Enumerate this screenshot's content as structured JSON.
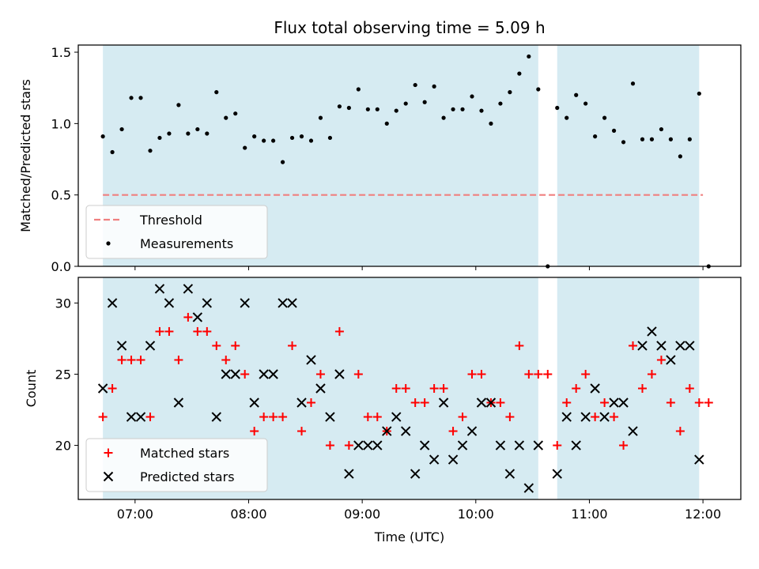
{
  "chart_data": [
    {
      "type": "scatter",
      "title": "Flux total observing time = 5.09 h",
      "xlabel": "",
      "ylabel": "Matched/Predicted stars",
      "x_range": [
        "06:30",
        "12:20"
      ],
      "ylim": [
        0,
        1.55
      ],
      "yticks": [
        "0.0",
        "0.5",
        "1.0",
        "1.5"
      ],
      "xticks": [
        "07:00",
        "08:00",
        "09:00",
        "10:00",
        "11:00",
        "12:00"
      ],
      "shaded_intervals": [
        [
          "06:43",
          "10:33"
        ],
        [
          "10:43",
          "11:58"
        ]
      ],
      "shade_color": "#add8e6",
      "legend": {
        "position": "lower-left",
        "entries": [
          "Threshold",
          "Measurements"
        ]
      },
      "series": [
        {
          "name": "Threshold",
          "style": "dashed-line",
          "color": "#f08080",
          "x": [
            "06:43",
            "12:00"
          ],
          "y": [
            0.5,
            0.5
          ]
        },
        {
          "name": "Measurements",
          "style": "dot",
          "color": "#000000",
          "points": [
            [
              "06:43",
              0.91
            ],
            [
              "06:48",
              0.8
            ],
            [
              "06:53",
              0.96
            ],
            [
              "06:58",
              1.18
            ],
            [
              "07:03",
              1.18
            ],
            [
              "07:08",
              0.81
            ],
            [
              "07:13",
              0.9
            ],
            [
              "07:18",
              0.93
            ],
            [
              "07:23",
              1.13
            ],
            [
              "07:28",
              0.93
            ],
            [
              "07:33",
              0.96
            ],
            [
              "07:38",
              0.93
            ],
            [
              "07:43",
              1.22
            ],
            [
              "07:48",
              1.04
            ],
            [
              "07:53",
              1.07
            ],
            [
              "07:58",
              0.83
            ],
            [
              "08:03",
              0.91
            ],
            [
              "08:08",
              0.88
            ],
            [
              "08:13",
              0.88
            ],
            [
              "08:18",
              0.73
            ],
            [
              "08:23",
              0.9
            ],
            [
              "08:28",
              0.91
            ],
            [
              "08:33",
              0.88
            ],
            [
              "08:38",
              1.04
            ],
            [
              "08:43",
              0.9
            ],
            [
              "08:48",
              1.12
            ],
            [
              "08:53",
              1.11
            ],
            [
              "08:58",
              1.24
            ],
            [
              "09:03",
              1.1
            ],
            [
              "09:08",
              1.1
            ],
            [
              "09:13",
              1.0
            ],
            [
              "09:18",
              1.09
            ],
            [
              "09:23",
              1.14
            ],
            [
              "09:28",
              1.27
            ],
            [
              "09:33",
              1.15
            ],
            [
              "09:38",
              1.26
            ],
            [
              "09:43",
              1.04
            ],
            [
              "09:48",
              1.1
            ],
            [
              "09:53",
              1.1
            ],
            [
              "09:58",
              1.19
            ],
            [
              "10:03",
              1.09
            ],
            [
              "10:08",
              1.0
            ],
            [
              "10:13",
              1.14
            ],
            [
              "10:18",
              1.22
            ],
            [
              "10:23",
              1.35
            ],
            [
              "10:28",
              1.47
            ],
            [
              "10:33",
              1.24
            ],
            [
              "10:38",
              0.0
            ],
            [
              "10:43",
              1.11
            ],
            [
              "10:48",
              1.04
            ],
            [
              "10:53",
              1.2
            ],
            [
              "10:58",
              1.14
            ],
            [
              "11:03",
              0.91
            ],
            [
              "11:08",
              1.04
            ],
            [
              "11:13",
              0.95
            ],
            [
              "11:18",
              0.87
            ],
            [
              "11:23",
              1.28
            ],
            [
              "11:28",
              0.89
            ],
            [
              "11:33",
              0.89
            ],
            [
              "11:38",
              0.96
            ],
            [
              "11:43",
              0.89
            ],
            [
              "11:48",
              0.77
            ],
            [
              "11:53",
              0.89
            ],
            [
              "11:58",
              1.21
            ],
            [
              "12:03",
              0.0
            ]
          ]
        }
      ]
    },
    {
      "type": "scatter",
      "title": "",
      "xlabel": "Time (UTC)",
      "ylabel": "Count",
      "x_range": [
        "06:30",
        "12:20"
      ],
      "ylim": [
        16.2,
        31.8
      ],
      "yticks": [
        "20",
        "25",
        "30"
      ],
      "xticks": [
        "07:00",
        "08:00",
        "09:00",
        "10:00",
        "11:00",
        "12:00"
      ],
      "shaded_intervals": [
        [
          "06:43",
          "10:33"
        ],
        [
          "10:43",
          "11:58"
        ]
      ],
      "shade_color": "#add8e6",
      "legend": {
        "position": "lower-left",
        "entries": [
          "Matched stars",
          "Predicted stars"
        ]
      },
      "series": [
        {
          "name": "Matched stars",
          "style": "plus",
          "color": "#ff0000",
          "points": [
            [
              "06:43",
              22
            ],
            [
              "06:48",
              24
            ],
            [
              "06:53",
              26
            ],
            [
              "06:58",
              26
            ],
            [
              "07:03",
              26
            ],
            [
              "07:08",
              22
            ],
            [
              "07:13",
              28
            ],
            [
              "07:18",
              28
            ],
            [
              "07:23",
              26
            ],
            [
              "07:28",
              29
            ],
            [
              "07:33",
              28
            ],
            [
              "07:38",
              28
            ],
            [
              "07:43",
              27
            ],
            [
              "07:48",
              26
            ],
            [
              "07:53",
              27
            ],
            [
              "07:58",
              25
            ],
            [
              "08:03",
              21
            ],
            [
              "08:08",
              22
            ],
            [
              "08:13",
              22
            ],
            [
              "08:18",
              22
            ],
            [
              "08:23",
              27
            ],
            [
              "08:28",
              21
            ],
            [
              "08:33",
              23
            ],
            [
              "08:38",
              25
            ],
            [
              "08:43",
              20
            ],
            [
              "08:48",
              28
            ],
            [
              "08:53",
              20
            ],
            [
              "08:58",
              25
            ],
            [
              "09:03",
              22
            ],
            [
              "09:08",
              22
            ],
            [
              "09:13",
              21
            ],
            [
              "09:18",
              24
            ],
            [
              "09:23",
              24
            ],
            [
              "09:28",
              23
            ],
            [
              "09:33",
              23
            ],
            [
              "09:38",
              24
            ],
            [
              "09:43",
              24
            ],
            [
              "09:48",
              21
            ],
            [
              "09:53",
              22
            ],
            [
              "09:58",
              25
            ],
            [
              "10:03",
              25
            ],
            [
              "10:08",
              23
            ],
            [
              "10:13",
              23
            ],
            [
              "10:18",
              22
            ],
            [
              "10:23",
              27
            ],
            [
              "10:28",
              25
            ],
            [
              "10:33",
              25
            ],
            [
              "10:38",
              25
            ],
            [
              "10:43",
              20
            ],
            [
              "10:48",
              23
            ],
            [
              "10:53",
              24
            ],
            [
              "10:58",
              25
            ],
            [
              "11:03",
              22
            ],
            [
              "11:08",
              23
            ],
            [
              "11:13",
              22
            ],
            [
              "11:18",
              20
            ],
            [
              "11:23",
              27
            ],
            [
              "11:28",
              24
            ],
            [
              "11:33",
              25
            ],
            [
              "11:38",
              26
            ],
            [
              "11:43",
              23
            ],
            [
              "11:48",
              21
            ],
            [
              "11:53",
              24
            ],
            [
              "11:58",
              23
            ],
            [
              "12:03",
              23
            ]
          ]
        },
        {
          "name": "Predicted stars",
          "style": "x",
          "color": "#000000",
          "points": [
            [
              "06:43",
              24
            ],
            [
              "06:48",
              30
            ],
            [
              "06:53",
              27
            ],
            [
              "06:58",
              22
            ],
            [
              "07:03",
              22
            ],
            [
              "07:08",
              27
            ],
            [
              "07:13",
              31
            ],
            [
              "07:18",
              30
            ],
            [
              "07:23",
              23
            ],
            [
              "07:28",
              31
            ],
            [
              "07:33",
              29
            ],
            [
              "07:38",
              30
            ],
            [
              "07:43",
              22
            ],
            [
              "07:48",
              25
            ],
            [
              "07:53",
              25
            ],
            [
              "07:58",
              30
            ],
            [
              "08:03",
              23
            ],
            [
              "08:08",
              25
            ],
            [
              "08:13",
              25
            ],
            [
              "08:18",
              30
            ],
            [
              "08:23",
              30
            ],
            [
              "08:28",
              23
            ],
            [
              "08:33",
              26
            ],
            [
              "08:38",
              24
            ],
            [
              "08:43",
              22
            ],
            [
              "08:48",
              25
            ],
            [
              "08:53",
              18
            ],
            [
              "08:58",
              20
            ],
            [
              "09:03",
              20
            ],
            [
              "09:08",
              20
            ],
            [
              "09:13",
              21
            ],
            [
              "09:18",
              22
            ],
            [
              "09:23",
              21
            ],
            [
              "09:28",
              18
            ],
            [
              "09:33",
              20
            ],
            [
              "09:38",
              19
            ],
            [
              "09:43",
              23
            ],
            [
              "09:48",
              19
            ],
            [
              "09:53",
              20
            ],
            [
              "09:58",
              21
            ],
            [
              "10:03",
              23
            ],
            [
              "10:08",
              23
            ],
            [
              "10:13",
              20
            ],
            [
              "10:18",
              18
            ],
            [
              "10:23",
              20
            ],
            [
              "10:28",
              17
            ],
            [
              "10:33",
              20
            ],
            [
              "10:43",
              18
            ],
            [
              "10:48",
              22
            ],
            [
              "10:53",
              20
            ],
            [
              "10:58",
              22
            ],
            [
              "11:03",
              24
            ],
            [
              "11:08",
              22
            ],
            [
              "11:13",
              23
            ],
            [
              "11:18",
              23
            ],
            [
              "11:23",
              21
            ],
            [
              "11:28",
              27
            ],
            [
              "11:33",
              28
            ],
            [
              "11:38",
              27
            ],
            [
              "11:43",
              26
            ],
            [
              "11:48",
              27
            ],
            [
              "11:53",
              27
            ],
            [
              "11:58",
              19
            ]
          ]
        }
      ]
    }
  ]
}
